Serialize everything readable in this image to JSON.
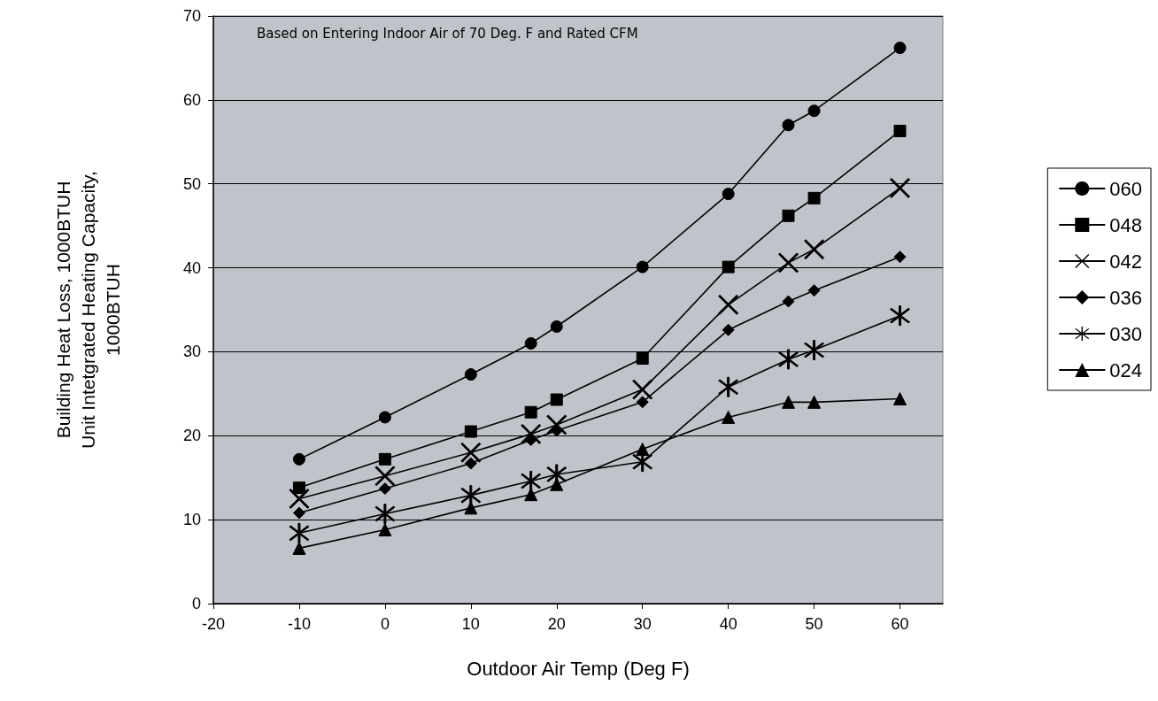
{
  "chart_data": {
    "type": "line",
    "xlabel": "Outdoor Air Temp (Deg F)",
    "ylabel": "Building Heat Loss, 1000BTUH\nUnit Intetgrated Heating Capacity,\n1000BTUH",
    "annotations": [
      "Based on Entering Indoor Air of 70 Deg. F and Rated CFM"
    ],
    "x": [
      -10,
      0,
      10,
      17,
      20,
      30,
      40,
      47,
      50,
      60
    ],
    "series": [
      {
        "name": "060",
        "color": "#000000",
        "marker": "circle",
        "values": [
          17.2,
          22.2,
          27.3,
          31.0,
          33.0,
          40.1,
          48.8,
          57.0,
          58.7,
          66.2
        ]
      },
      {
        "name": "048",
        "color": "#000000",
        "marker": "square",
        "values": [
          13.8,
          17.2,
          20.5,
          22.8,
          24.3,
          29.2,
          40.1,
          46.2,
          48.3,
          56.3
        ]
      },
      {
        "name": "042",
        "color": "#000000",
        "marker": "cross",
        "values": [
          12.5,
          15.2,
          18.0,
          20.2,
          21.3,
          25.5,
          35.6,
          40.6,
          42.2,
          49.5
        ]
      },
      {
        "name": "036",
        "color": "#000000",
        "marker": "diamond",
        "values": [
          10.8,
          13.7,
          16.7,
          19.5,
          20.6,
          24.0,
          32.6,
          36.0,
          37.3,
          41.3
        ]
      },
      {
        "name": "030",
        "color": "#000000",
        "marker": "star",
        "values": [
          8.4,
          10.7,
          12.9,
          14.6,
          15.4,
          16.9,
          25.8,
          29.1,
          30.2,
          34.3
        ]
      },
      {
        "name": "024",
        "color": "#000000",
        "marker": "triangle",
        "values": [
          6.6,
          8.8,
          11.4,
          13.0,
          14.2,
          18.4,
          22.2,
          24.0,
          24.0,
          24.4
        ]
      }
    ],
    "xlim": [
      -20,
      65
    ],
    "xticks": [
      -20,
      -10,
      0,
      10,
      20,
      30,
      40,
      50,
      60
    ],
    "ylim": [
      0,
      70
    ],
    "yticks": [
      0,
      10,
      20,
      30,
      40,
      50,
      60,
      70
    ],
    "grid": "y",
    "legend": "right",
    "line_style": "solid"
  }
}
